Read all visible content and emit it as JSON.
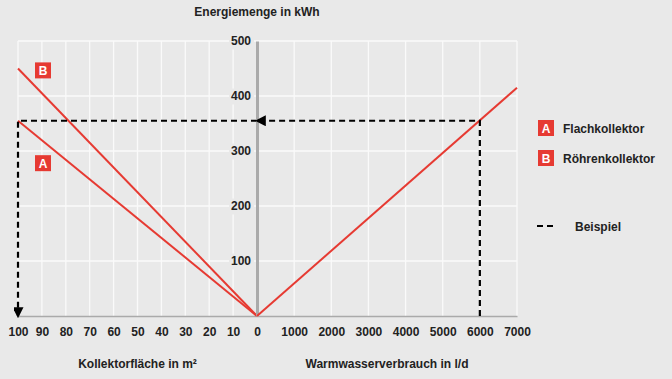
{
  "chart_data": [
    {
      "type": "line",
      "x_label": "Kollektorfläche in m²",
      "xlim": [
        100,
        0
      ],
      "xticks": [
        100,
        90,
        80,
        70,
        60,
        50,
        40,
        30,
        20,
        10
      ],
      "ylim": [
        0,
        500
      ],
      "yticks": [
        100,
        200,
        300,
        400,
        500
      ],
      "grid": true,
      "tick_labels": "x",
      "legend": "right",
      "series": [
        {
          "name": "Flachkollektor",
          "key": "A",
          "color": "#e63a32",
          "x": [
            0,
            100
          ],
          "values": [
            0,
            355
          ]
        },
        {
          "name": "Röhrenkollektor",
          "key": "B",
          "color": "#e63a32",
          "x": [
            0,
            100
          ],
          "values": [
            0,
            450
          ]
        },
        {
          "name": "Beispiel",
          "color": "#000000",
          "line_style": "dashed",
          "marker": "arrow",
          "x": [
            0,
            100,
            100
          ],
          "values": [
            355,
            355,
            0
          ]
        }
      ]
    },
    {
      "type": "line",
      "x_label": "Warmwasserverbrauch in l/d",
      "y_label": "Energiemenge in kWh",
      "xlim": [
        0,
        7000
      ],
      "xticks": [
        0,
        1000,
        2000,
        3000,
        4000,
        5000,
        6000,
        7000
      ],
      "ylim": [
        0,
        500
      ],
      "yticks": [
        100,
        200,
        300,
        400,
        500
      ],
      "grid": true,
      "series": [
        {
          "color": "#e63a32",
          "x": [
            0,
            7000
          ],
          "values": [
            0,
            415
          ]
        },
        {
          "color": "#000000",
          "line_style": "dashed",
          "marker": "arrow",
          "x": [
            6000,
            6000,
            0
          ],
          "values": [
            0,
            355,
            355
          ]
        }
      ]
    }
  ]
}
